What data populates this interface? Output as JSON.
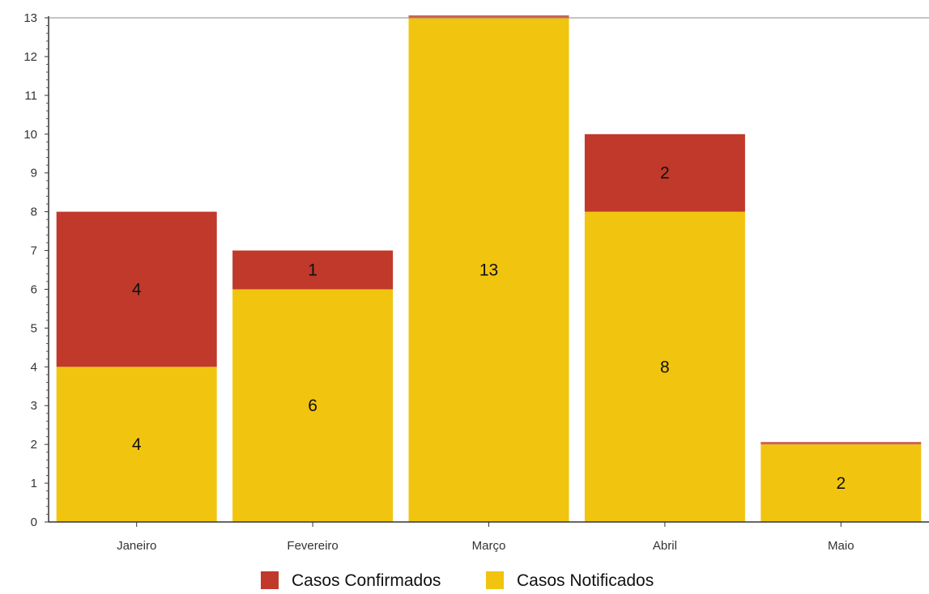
{
  "chart_data": {
    "type": "bar",
    "stacked": true,
    "categories": [
      "Janeiro",
      "Fevereiro",
      "Março",
      "Abril",
      "Maio"
    ],
    "series": [
      {
        "name": "Casos Confirmados",
        "color": "#c0392b",
        "values": [
          4,
          1,
          0,
          2,
          0
        ],
        "labels": [
          "4",
          "1",
          "",
          "2",
          ""
        ]
      },
      {
        "name": "Casos Notificados",
        "color": "#f1c40f",
        "values": [
          4,
          6,
          13,
          8,
          2
        ],
        "labels": [
          "4",
          "6",
          "13",
          "8",
          "2"
        ]
      }
    ],
    "ylim": [
      0,
      13
    ],
    "yticks": [
      "0",
      "1",
      "2",
      "3",
      "4",
      "5",
      "6",
      "7",
      "8",
      "9",
      "10",
      "11",
      "12",
      "13"
    ],
    "legend_position": "bottom-center",
    "grid": false
  }
}
